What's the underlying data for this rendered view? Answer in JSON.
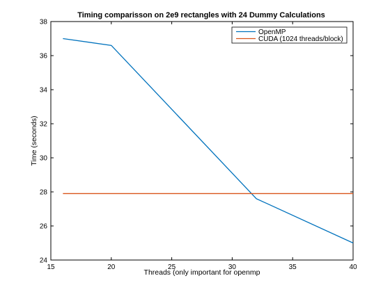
{
  "chart_data": {
    "type": "line",
    "title": "Timing comparisson on 2e9 rectangles with 24 Dummy Calculations",
    "xlabel": "Threads (only important for openmp",
    "ylabel": "Time (seconds)",
    "xlim": [
      15,
      40
    ],
    "ylim": [
      24,
      38
    ],
    "xticks": [
      15,
      20,
      25,
      30,
      35,
      40
    ],
    "yticks": [
      24,
      26,
      28,
      30,
      32,
      34,
      36,
      38
    ],
    "grid": false,
    "legend_position": "top-right",
    "series": [
      {
        "name": "OpenMP",
        "color": "#0072BD",
        "x": [
          16,
          20,
          32,
          40
        ],
        "y": [
          37.0,
          36.6,
          27.6,
          25.0
        ]
      },
      {
        "name": "CUDA (1024 threads/block)",
        "color": "#D95319",
        "x": [
          16,
          40
        ],
        "y": [
          27.9,
          27.9
        ]
      }
    ]
  }
}
